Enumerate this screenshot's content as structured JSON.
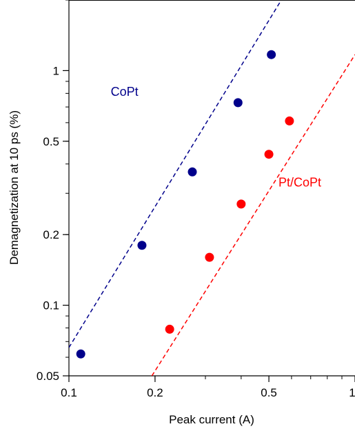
{
  "chart_data": {
    "type": "scatter",
    "title": "",
    "xlabel": "Peak current (A)",
    "ylabel": "Demagnetization at 10 ps (%)",
    "x_scale": "log",
    "y_scale": "log",
    "xlim": [
      0.1,
      1.0
    ],
    "ylim": [
      0.05,
      2.0
    ],
    "grid": false,
    "legend": "none",
    "x_ticks": [
      {
        "value": 0.1,
        "label": "0.1"
      },
      {
        "value": 0.2,
        "label": "0.2"
      },
      {
        "value": 0.5,
        "label": "0.5"
      },
      {
        "value": 1.0,
        "label": "1"
      }
    ],
    "y_ticks": [
      {
        "value": 0.05,
        "label": "0.05"
      },
      {
        "value": 0.1,
        "label": "0.1"
      },
      {
        "value": 0.2,
        "label": "0.2"
      },
      {
        "value": 0.5,
        "label": "0.5"
      },
      {
        "value": 1.0,
        "label": "1"
      }
    ],
    "series": [
      {
        "name": "CoPt",
        "color": "#00008b",
        "x": [
          0.11,
          0.18,
          0.27,
          0.39,
          0.51
        ],
        "y": [
          0.062,
          0.18,
          0.37,
          0.73,
          1.17
        ],
        "fit_line": {
          "x": [
            0.1,
            0.55
          ],
          "y": [
            0.066,
            1.98
          ]
        }
      },
      {
        "name": "Pt/CoPt",
        "color": "#ff0000",
        "x": [
          0.225,
          0.31,
          0.4,
          0.5,
          0.59
        ],
        "y": [
          0.079,
          0.16,
          0.27,
          0.44,
          0.61
        ],
        "fit_line": {
          "x": [
            0.195,
            1.0
          ],
          "y": [
            0.05,
            1.17
          ]
        }
      }
    ],
    "annotations": [
      {
        "text": "CoPt",
        "color": "#00008b",
        "x": 0.14,
        "y": 0.78
      },
      {
        "text": "Pt/CoPt",
        "color": "#ff0000",
        "x": 0.54,
        "y": 0.32
      }
    ]
  }
}
